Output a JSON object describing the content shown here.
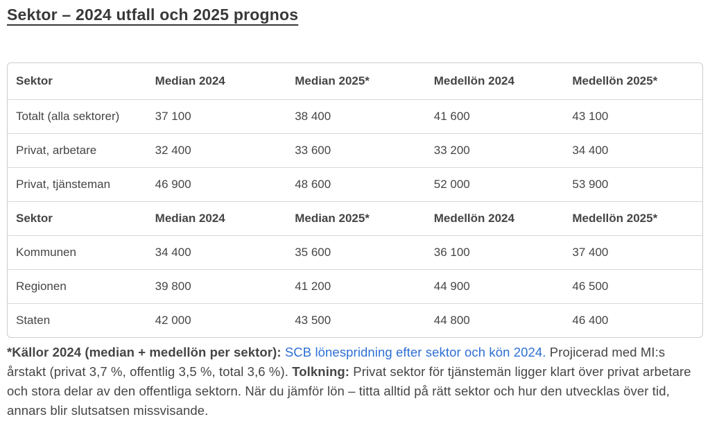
{
  "page": {
    "title": "Sektor – 2024 utfall och 2025 prognos"
  },
  "table": {
    "columns": [
      "Sektor",
      "Median 2024",
      "Median 2025*",
      "Medellön 2024",
      "Medellön 2025*"
    ],
    "rows": [
      {
        "type": "data",
        "cells": [
          "Totalt (alla sektorer)",
          "37 100",
          "38 400",
          "41 600",
          "43 100"
        ]
      },
      {
        "type": "data",
        "cells": [
          "Privat, arbetare",
          "32 400",
          "33 600",
          "33 200",
          "34 400"
        ]
      },
      {
        "type": "data",
        "cells": [
          "Privat, tjänsteman",
          "46 900",
          "48 600",
          "52 000",
          "53 900"
        ]
      },
      {
        "type": "header",
        "cells": [
          "Sektor",
          "Median 2024",
          "Median 2025*",
          "Medellön 2024",
          "Medellön 2025*"
        ]
      },
      {
        "type": "data",
        "cells": [
          "Kommunen",
          "34 400",
          "35 600",
          "36 100",
          "37 400"
        ]
      },
      {
        "type": "data",
        "cells": [
          "Regionen",
          "39 800",
          "41 200",
          "44 900",
          "46 500"
        ]
      },
      {
        "type": "data",
        "cells": [
          "Staten",
          "42 000",
          "43 500",
          "44 800",
          "46 400"
        ]
      }
    ]
  },
  "footnote": {
    "sources_label": "*Källor 2024 (median + medellön per sektor):",
    "link_text": "SCB lönespridning efter sektor och kön 2024.",
    "projection_text": "Projicerad med MI:s årstakt (privat 3,7 %, offentlig 3,5 %, total 3,6 %).",
    "interpretation_label": "Tolkning:",
    "interpretation_text": "Privat sektor för tjänstemän ligger klart över privat arbetare och stora delar av den offentliga sektorn. När du jämför lön – titta alltid på rätt sektor och hur den utvecklas över tid, annars blir slutsatsen missvisande."
  },
  "colors": {
    "text": "#454545",
    "heading": "#383838",
    "link": "#2d6fd3",
    "border": "#d8d8d8",
    "outer_border": "#cccccc",
    "background": "#ffffff"
  }
}
